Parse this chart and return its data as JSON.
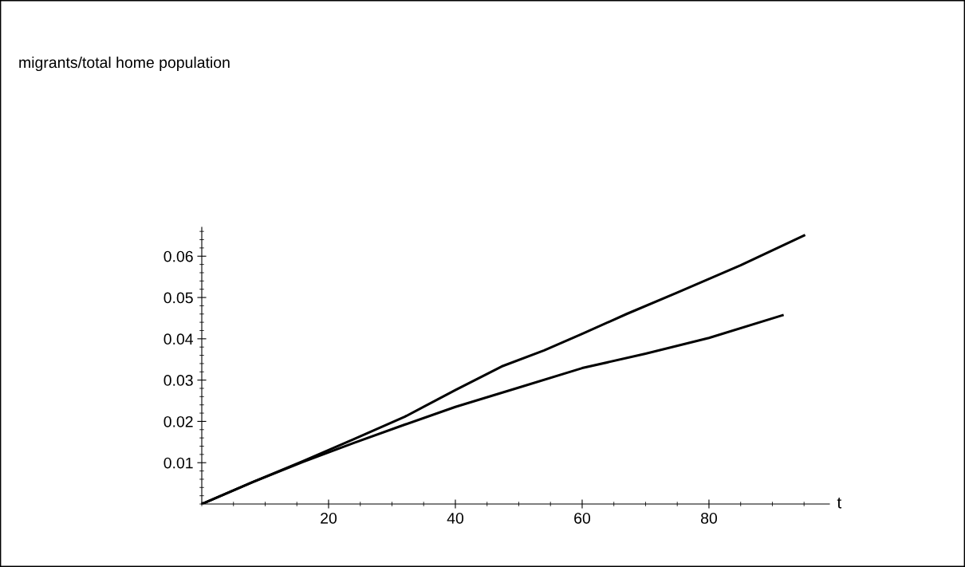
{
  "chart_data": {
    "type": "line",
    "annotations": [
      "migrants/total home population"
    ],
    "xlabel": "t",
    "xlim": [
      0,
      99
    ],
    "ylim": [
      0,
      0.067
    ],
    "xticks": [
      20,
      40,
      60,
      80
    ],
    "yticks": [
      0.01,
      0.02,
      0.03,
      0.04,
      0.05,
      0.06
    ],
    "grid": false,
    "legend": false,
    "marker": "none",
    "line_style": "solid",
    "series": [
      {
        "color": "#000000",
        "x": [
          0,
          8,
          16,
          24,
          32,
          40,
          47.3,
          54,
          60,
          67,
          75,
          85,
          95
        ],
        "values": [
          0,
          0.0053,
          0.0104,
          0.0157,
          0.0211,
          0.0276,
          0.0333,
          0.0372,
          0.0412,
          0.046,
          0.0512,
          0.0578,
          0.065
        ]
      },
      {
        "color": "#000000",
        "x": [
          0,
          8,
          16,
          24,
          32,
          40,
          50,
          60,
          70,
          80,
          91.6
        ],
        "values": [
          0,
          0.0053,
          0.0102,
          0.0148,
          0.0192,
          0.0235,
          0.0282,
          0.0329,
          0.0364,
          0.0402,
          0.0457
        ]
      }
    ]
  }
}
